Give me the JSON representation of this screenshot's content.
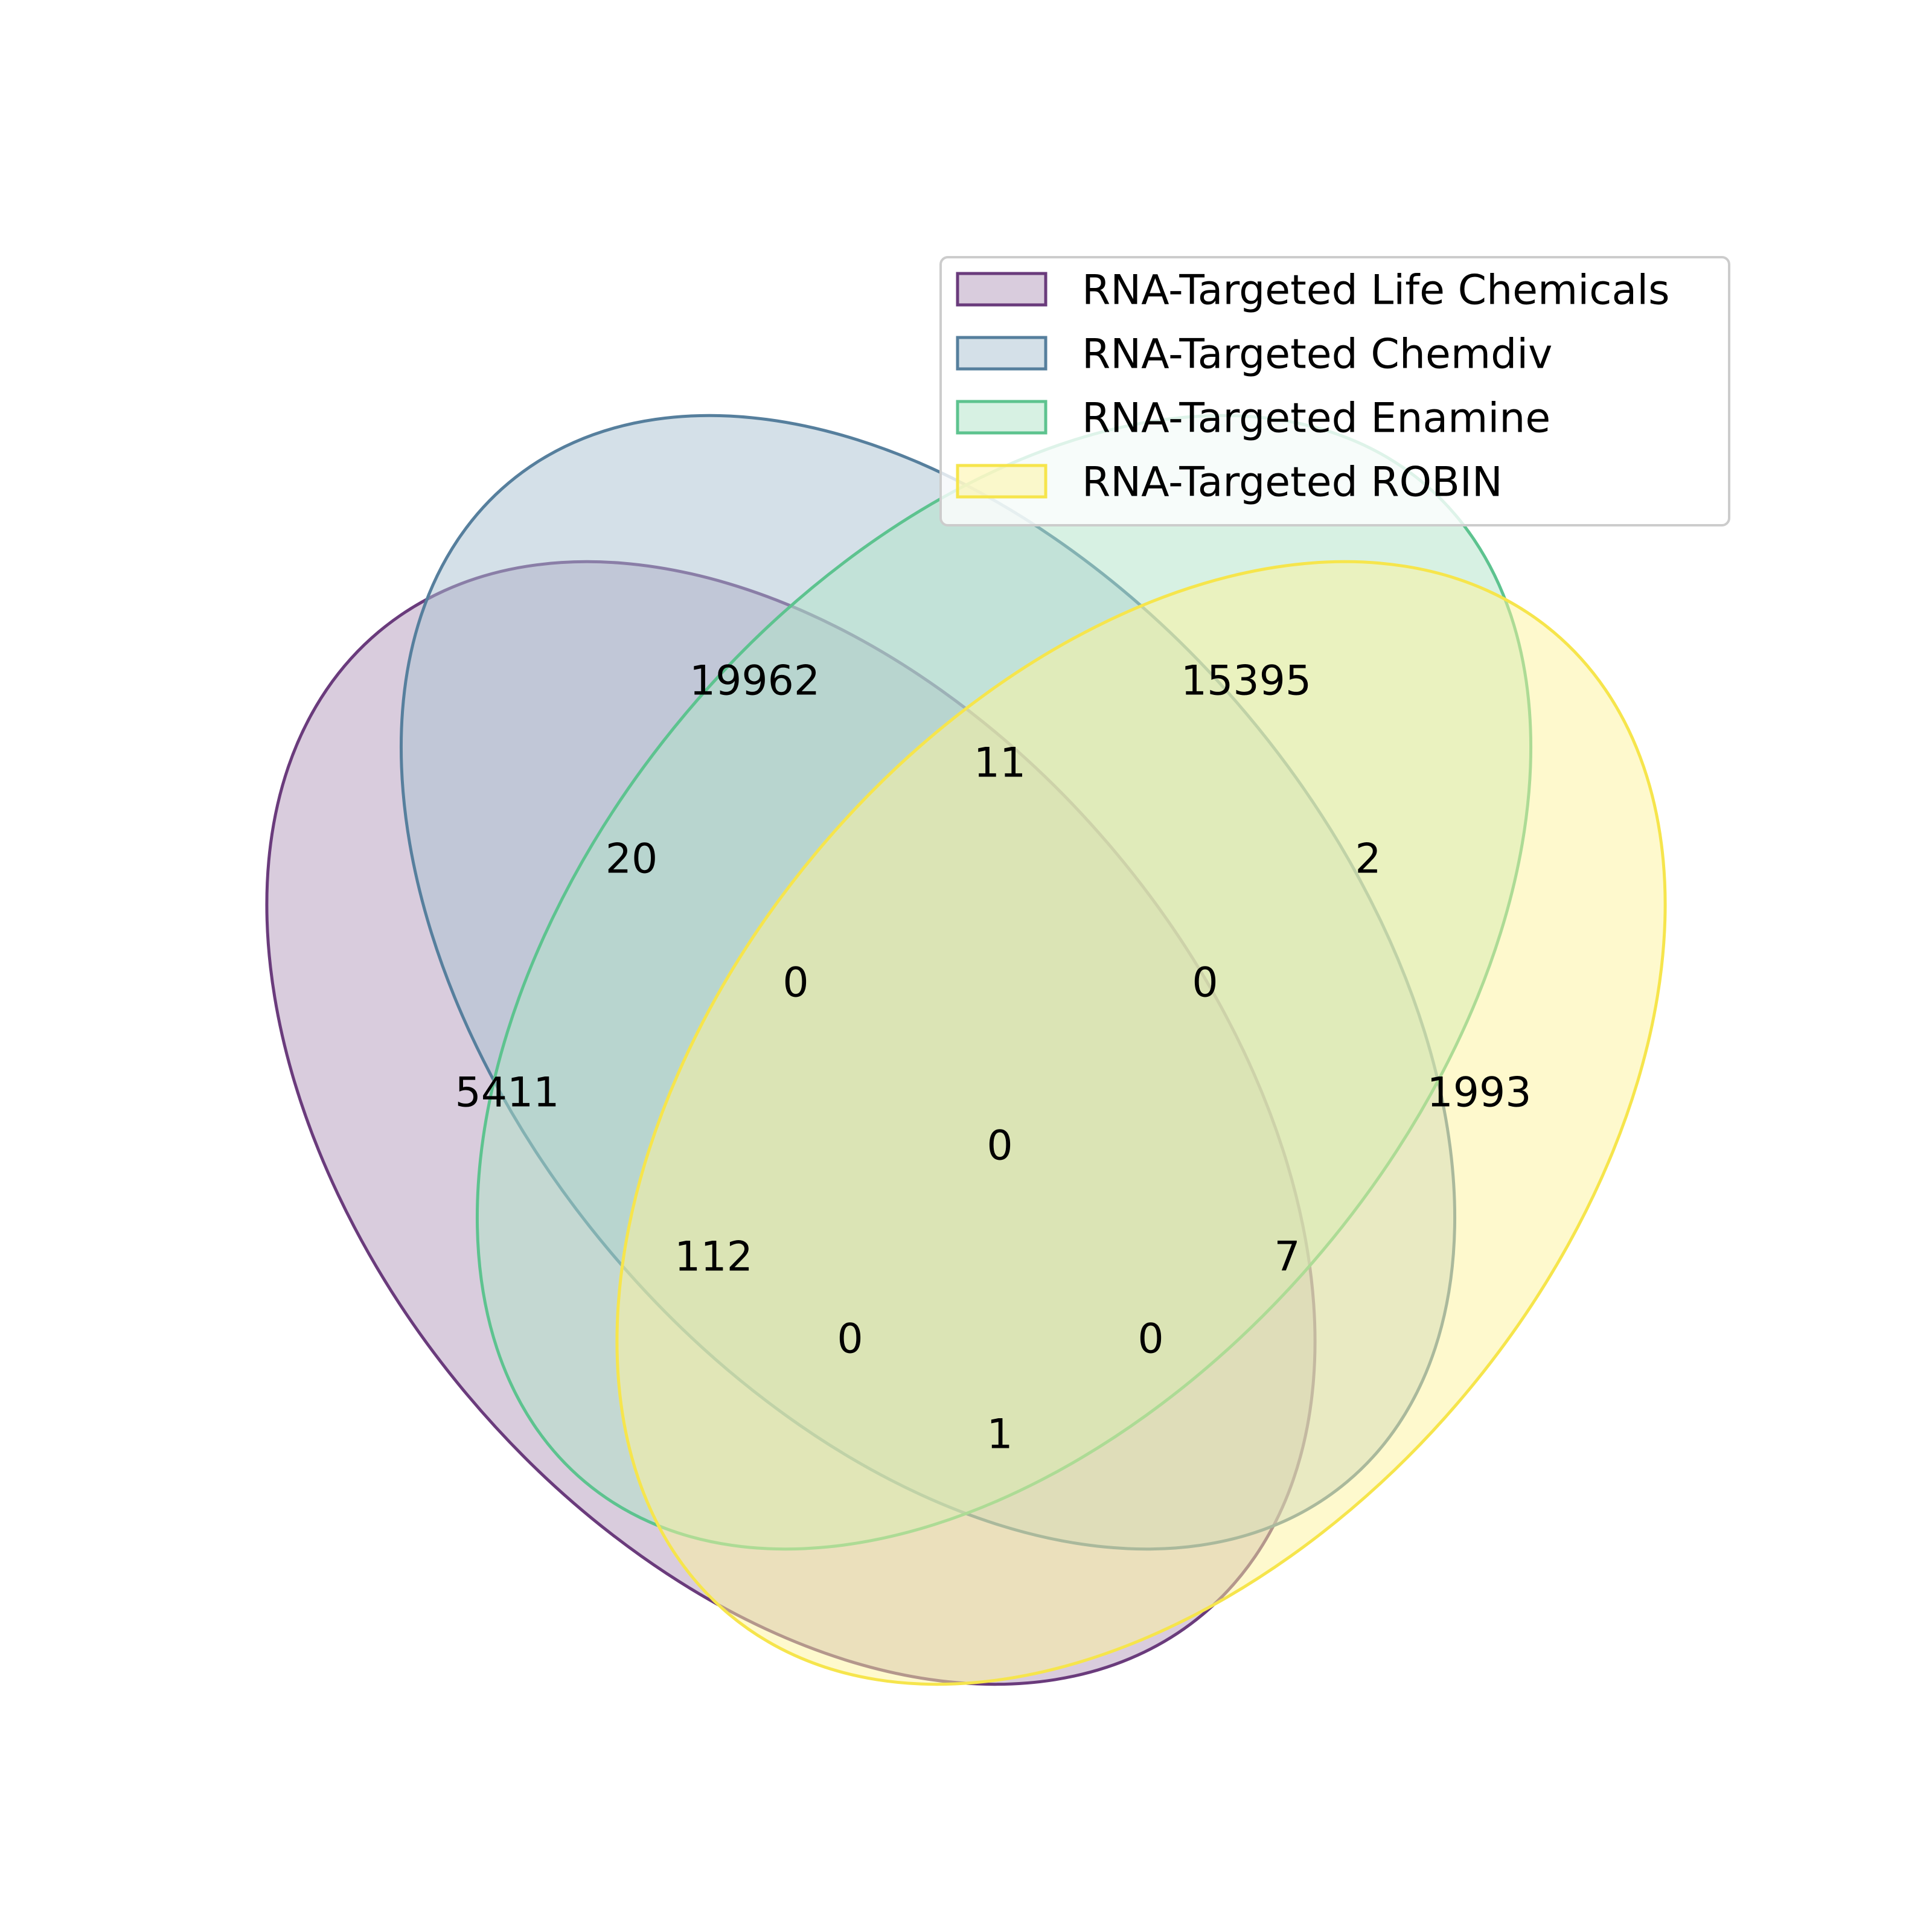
{
  "chart_data": {
    "type": "venn",
    "sets": [
      {
        "id": "A",
        "name": "RNA-Targeted Life Chemicals",
        "fill": "#b399bb",
        "stroke": "#6a3b7c"
      },
      {
        "id": "B",
        "name": "RNA-Targeted Chemdiv",
        "fill": "#aac1d1",
        "stroke": "#567f9d"
      },
      {
        "id": "C",
        "name": "RNA-Targeted Enamine",
        "fill": "#afe4c8",
        "stroke": "#5dc38f"
      },
      {
        "id": "D",
        "name": "RNA-Targeted ROBIN",
        "fill": "#fdf39b",
        "stroke": "#f6e54c"
      }
    ],
    "regions": [
      {
        "sets": "A",
        "value": "5411"
      },
      {
        "sets": "B",
        "value": "19962"
      },
      {
        "sets": "C",
        "value": "15395"
      },
      {
        "sets": "D",
        "value": "1993"
      },
      {
        "sets": "AB",
        "value": "20"
      },
      {
        "sets": "BC",
        "value": "11"
      },
      {
        "sets": "CD",
        "value": "2"
      },
      {
        "sets": "ABC",
        "value": "0"
      },
      {
        "sets": "BCD",
        "value": "0"
      },
      {
        "sets": "ABCD",
        "value": "0"
      },
      {
        "sets": "AC",
        "value": "112"
      },
      {
        "sets": "BD",
        "value": "7"
      },
      {
        "sets": "ACD",
        "value": "0"
      },
      {
        "sets": "ABD",
        "value": "0"
      },
      {
        "sets": "AD",
        "value": "1"
      }
    ],
    "legend_position": "top-right"
  }
}
